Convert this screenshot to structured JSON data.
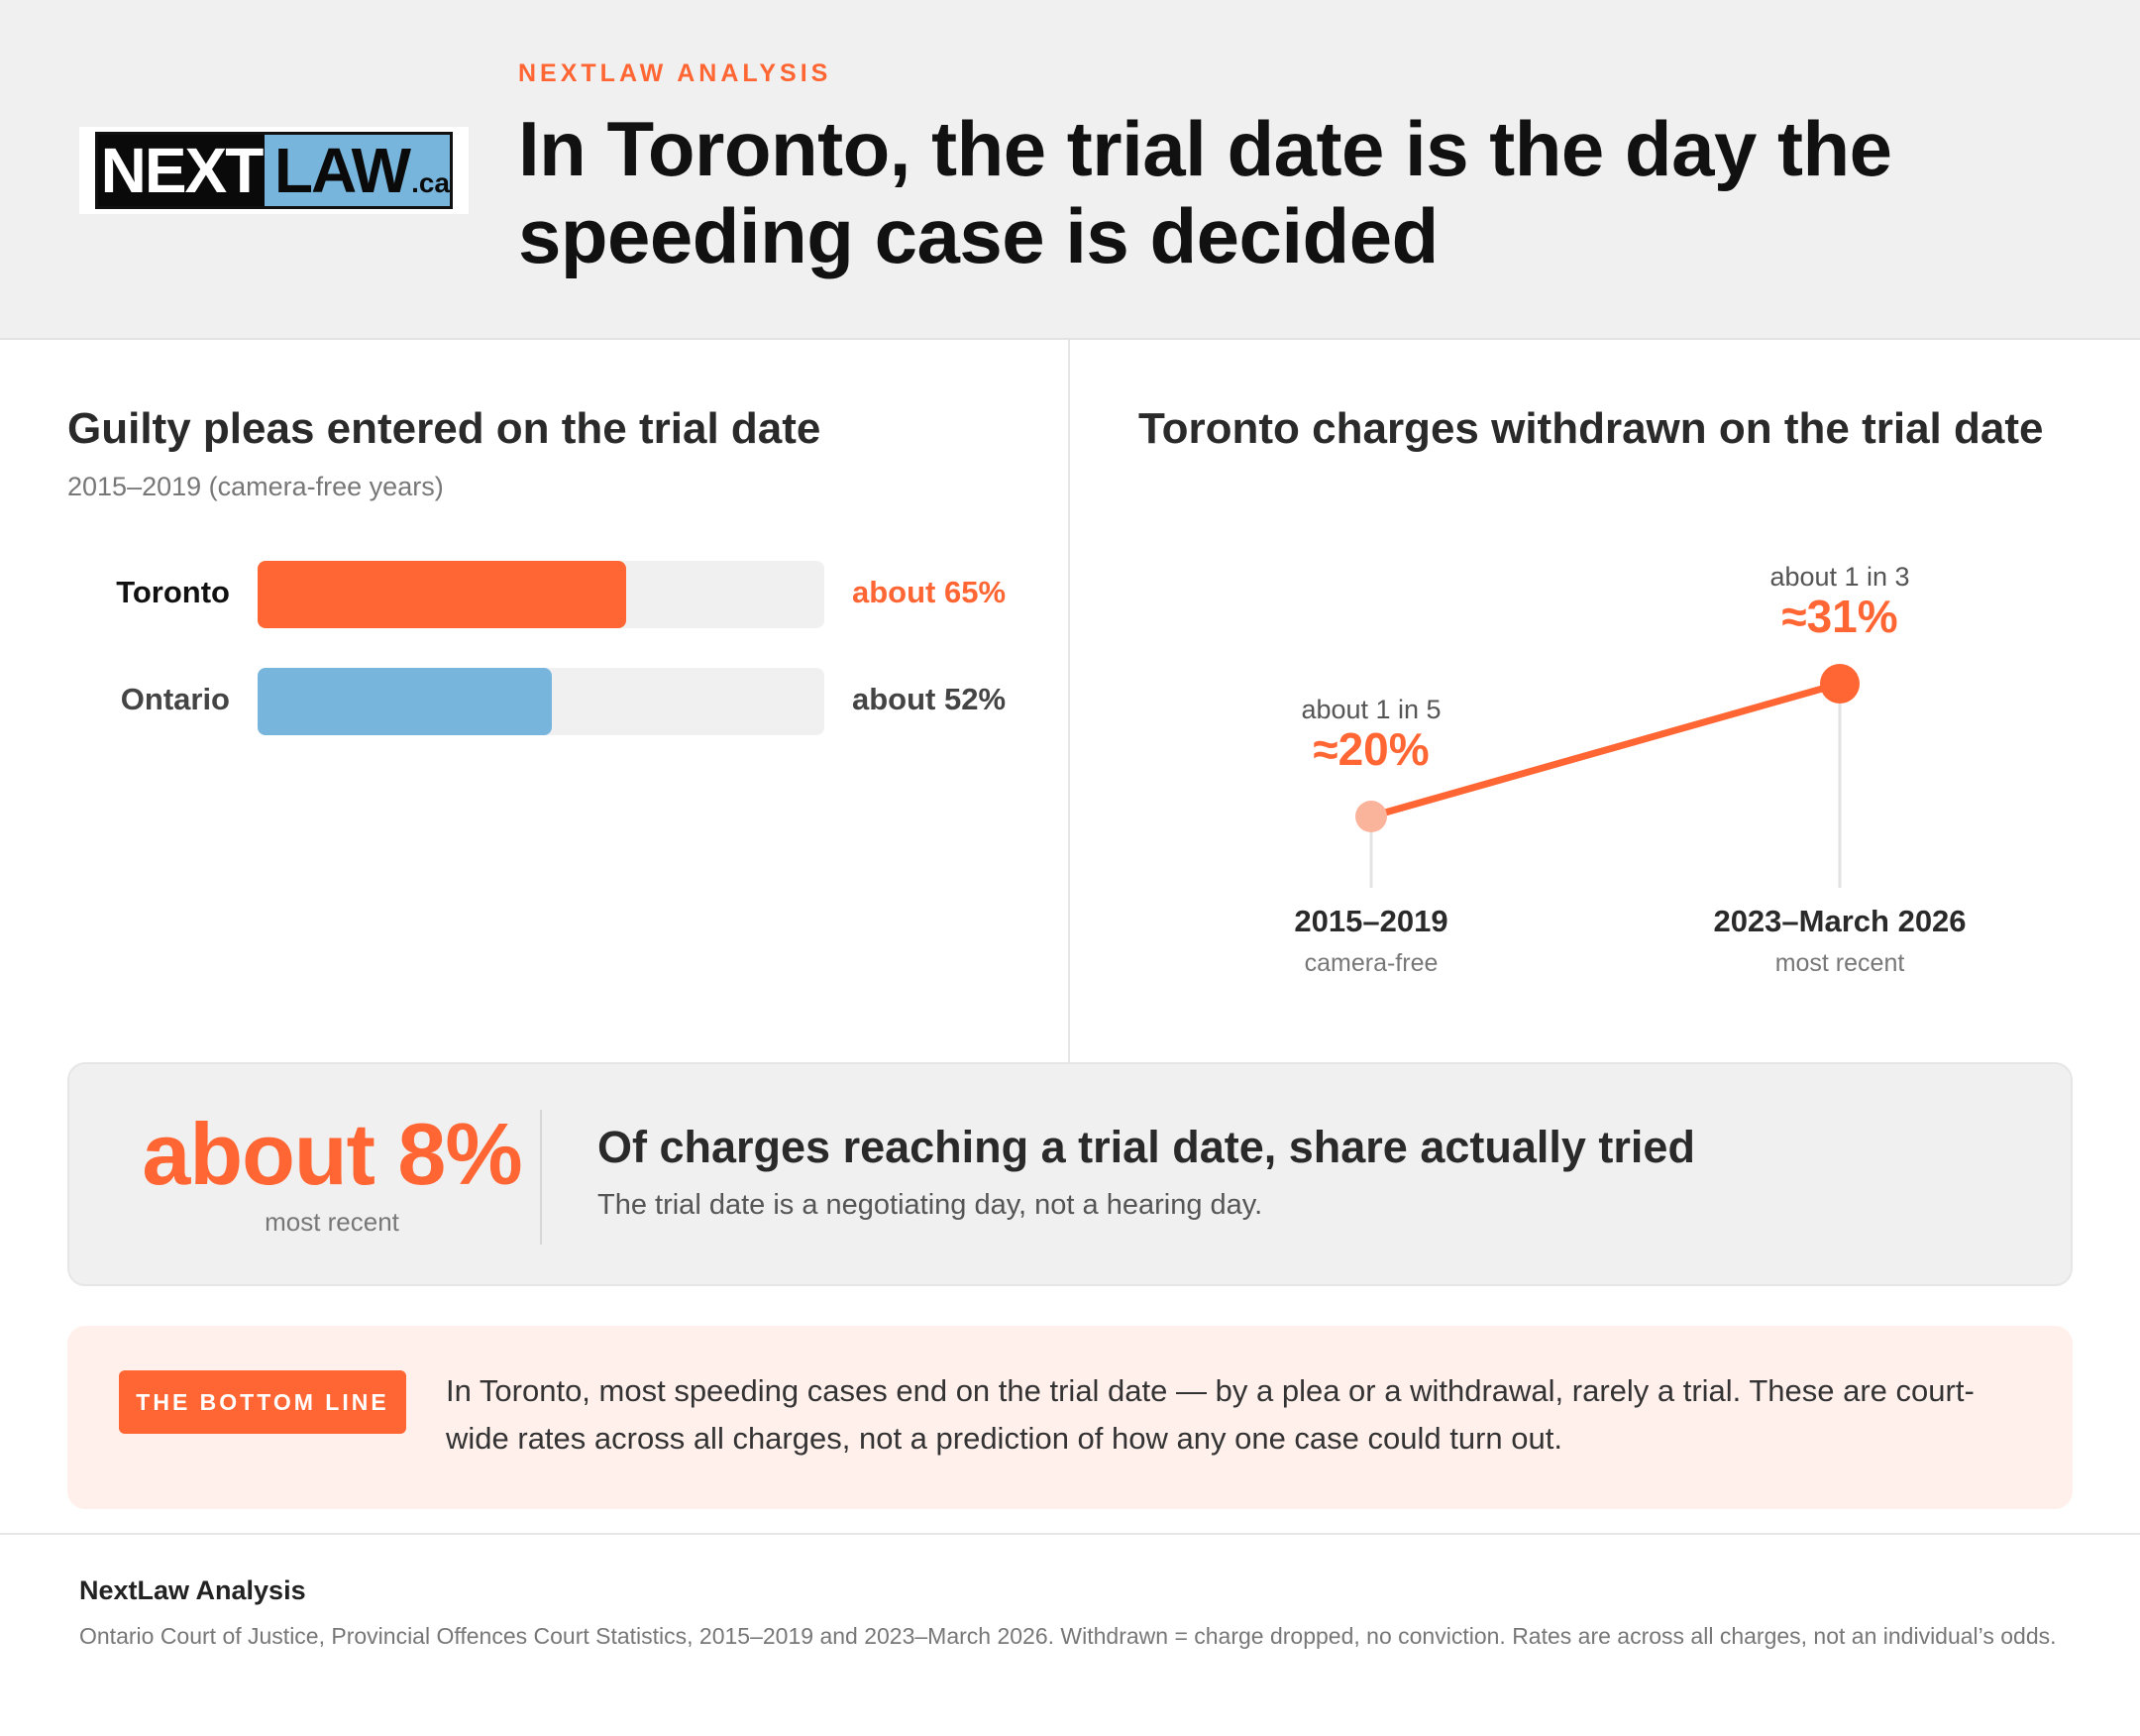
{
  "header": {
    "kicker": "NEXTLAW ANALYSIS",
    "title": "In Toronto, the trial date is the day the speeding case is decided",
    "logo": {
      "part1": "NEXT",
      "part2": "LAW",
      "suffix": ".ca"
    }
  },
  "colors": {
    "accent": "#ff6633",
    "accent_light": "#fbb49c",
    "blue": "#77b5dc",
    "track": "#f0f0f0",
    "panel": "#f0f0f0",
    "bottomline_bg": "#fff0ec"
  },
  "left_panel": {
    "title": "Guilty pleas entered on the trial date",
    "subtitle": "2015–2019 (camera-free years)"
  },
  "right_panel": {
    "title": "Toronto charges withdrawn on the trial date"
  },
  "chart_data": [
    {
      "type": "bar",
      "orientation": "horizontal",
      "title": "Guilty pleas entered on the trial date",
      "subtitle": "2015–2019 (camera-free years)",
      "categories": [
        "Toronto",
        "Ontario"
      ],
      "values": [
        65,
        52
      ],
      "value_labels": [
        "about 65%",
        "about 52%"
      ],
      "colors": [
        "#ff6633",
        "#77b5dc"
      ],
      "xlim": [
        0,
        100
      ],
      "grid": false
    },
    {
      "type": "line",
      "title": "Toronto charges withdrawn on the trial date",
      "x": [
        "2015–2019",
        "2023–March 2026"
      ],
      "x_sublabels": [
        "camera-free",
        "most recent"
      ],
      "values": [
        20,
        31
      ],
      "value_labels": [
        "≈20%",
        "≈31%"
      ],
      "annotations": [
        "about 1 in 5",
        "about 1 in 3"
      ],
      "ylim": [
        0,
        35
      ],
      "grid": false
    }
  ],
  "stat": {
    "big": "about 8%",
    "small": "most recent",
    "headline": "Of charges reaching a trial date, share actually tried",
    "text": "The trial date is a negotiating day, not a hearing day."
  },
  "bottom_line": {
    "badge": "THE BOTTOM LINE",
    "text": "In Toronto, most speeding cases end on the trial date — by a plea or a withdrawal, rarely a trial. These are court-wide rates across all charges, not a prediction of how any one case could turn out."
  },
  "footer": {
    "title": "NextLaw Analysis",
    "text": "Ontario Court of Justice, Provincial Offences Court Statistics, 2015–2019 and 2023–March 2026. Withdrawn = charge dropped, no conviction. Rates are across all charges, not an individual’s odds."
  }
}
